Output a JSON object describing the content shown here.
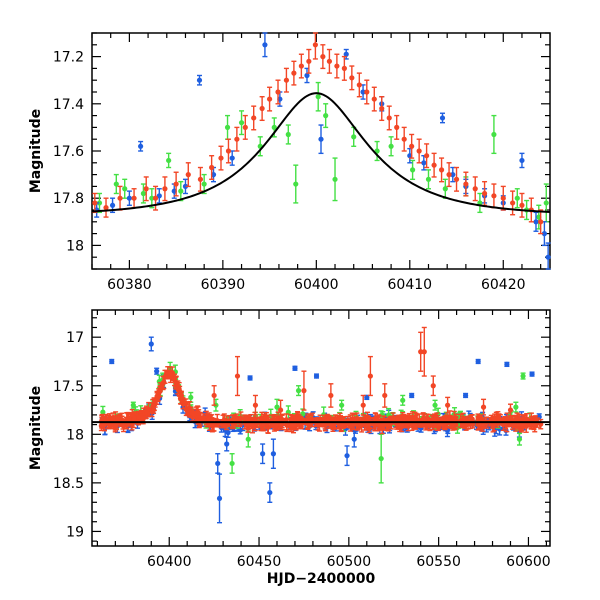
{
  "colors": {
    "blue": "#1f5fe0",
    "green": "#44e044",
    "red": "#f24626",
    "model": "#000000"
  },
  "chart_data": [
    {
      "type": "scatter",
      "panel": "top",
      "title": "",
      "xlabel": "",
      "ylabel": "Magnitude",
      "xlim": [
        60376,
        60425
      ],
      "ylim": [
        18.1,
        17.1
      ],
      "y_inverted": true,
      "xticks": [
        "60380",
        "60390",
        "60400",
        "60410",
        "60420"
      ],
      "yticks": [
        "17.2",
        "17.4",
        "17.6",
        "17.8",
        "18"
      ],
      "model_curve": {
        "peak_x": 60400,
        "peak_mag": 17.355,
        "baseline_mag": 17.875,
        "u0": 0.6,
        "tE": 10
      },
      "series": [
        {
          "color": "blue",
          "points": [
            [
              60376.5,
              17.85,
              0.03
            ],
            [
              60378.2,
              17.83,
              0.03
            ],
            [
              60380.0,
              17.8,
              0.03
            ],
            [
              60381.2,
              17.58,
              0.02
            ],
            [
              60383.2,
              17.79,
              0.03
            ],
            [
              60384.8,
              17.77,
              0.03
            ],
            [
              60386.0,
              17.75,
              0.03
            ],
            [
              60387.5,
              17.3,
              0.02
            ],
            [
              60389.0,
              17.7,
              0.03
            ],
            [
              60391.0,
              17.63,
              0.03
            ],
            [
              60394.5,
              17.15,
              0.05
            ],
            [
              60396.1,
              17.38,
              0.03
            ],
            [
              60399.0,
              17.28,
              0.03
            ],
            [
              60400.5,
              17.55,
              0.06
            ],
            [
              60403.2,
              17.19,
              0.02
            ],
            [
              60405.0,
              17.35,
              0.03
            ],
            [
              60407.0,
              17.4,
              0.03
            ],
            [
              60410.0,
              17.62,
              0.03
            ],
            [
              60411.5,
              17.65,
              0.03
            ],
            [
              60413.5,
              17.46,
              0.02
            ],
            [
              60414.6,
              17.7,
              0.03
            ],
            [
              60416.0,
              17.75,
              0.03
            ],
            [
              60418.0,
              17.79,
              0.03
            ],
            [
              60420.0,
              17.82,
              0.03
            ],
            [
              60422.0,
              17.64,
              0.03
            ],
            [
              60423.5,
              17.9,
              0.04
            ],
            [
              60424.4,
              17.95,
              0.05
            ],
            [
              60424.8,
              18.05,
              0.06
            ]
          ]
        },
        {
          "color": "green",
          "points": [
            [
              60376.8,
              17.82,
              0.04
            ],
            [
              60378.6,
              17.74,
              0.04
            ],
            [
              60379.5,
              17.76,
              0.04
            ],
            [
              60381.5,
              17.78,
              0.04
            ],
            [
              60382.4,
              17.8,
              0.04
            ],
            [
              60384.2,
              17.64,
              0.03
            ],
            [
              60385.5,
              17.77,
              0.04
            ],
            [
              60388.0,
              17.74,
              0.04
            ],
            [
              60390.5,
              17.5,
              0.05
            ],
            [
              60392.0,
              17.48,
              0.05
            ],
            [
              60394.0,
              17.58,
              0.04
            ],
            [
              60395.5,
              17.5,
              0.04
            ],
            [
              60397.0,
              17.53,
              0.04
            ],
            [
              60397.8,
              17.74,
              0.08
            ],
            [
              60400.2,
              17.37,
              0.06
            ],
            [
              60401.0,
              17.45,
              0.05
            ],
            [
              60402.0,
              17.72,
              0.09
            ],
            [
              60404.0,
              17.54,
              0.04
            ],
            [
              60406.5,
              17.6,
              0.04
            ],
            [
              60408.0,
              17.58,
              0.04
            ],
            [
              60410.3,
              17.68,
              0.04
            ],
            [
              60412.0,
              17.72,
              0.04
            ],
            [
              60413.8,
              17.76,
              0.04
            ],
            [
              60416.0,
              17.75,
              0.04
            ],
            [
              60417.5,
              17.82,
              0.04
            ],
            [
              60419.0,
              17.53,
              0.08
            ],
            [
              60421.5,
              17.8,
              0.04
            ],
            [
              60422.5,
              17.85,
              0.04
            ],
            [
              60423.8,
              17.88,
              0.05
            ],
            [
              60424.6,
              17.82,
              0.08
            ]
          ]
        },
        {
          "color": "red",
          "points": [
            [
              60376.3,
              17.82,
              0.04
            ],
            [
              60377.5,
              17.84,
              0.04
            ],
            [
              60379.0,
              17.8,
              0.05
            ],
            [
              60380.5,
              17.8,
              0.04
            ],
            [
              60381.8,
              17.76,
              0.05
            ],
            [
              60382.8,
              17.8,
              0.05
            ],
            [
              60383.8,
              17.76,
              0.05
            ],
            [
              60385.0,
              17.74,
              0.05
            ],
            [
              60386.3,
              17.7,
              0.05
            ],
            [
              60387.6,
              17.72,
              0.05
            ],
            [
              60388.8,
              17.67,
              0.05
            ],
            [
              60389.8,
              17.63,
              0.05
            ],
            [
              60390.6,
              17.6,
              0.05
            ],
            [
              60391.5,
              17.55,
              0.05
            ],
            [
              60392.4,
              17.5,
              0.05
            ],
            [
              60393.3,
              17.46,
              0.05
            ],
            [
              60394.2,
              17.42,
              0.05
            ],
            [
              60395.0,
              17.38,
              0.05
            ],
            [
              60395.9,
              17.35,
              0.05
            ],
            [
              60396.8,
              17.3,
              0.05
            ],
            [
              60397.6,
              17.27,
              0.05
            ],
            [
              60398.4,
              17.24,
              0.05
            ],
            [
              60399.2,
              17.22,
              0.05
            ],
            [
              60399.9,
              17.15,
              0.06
            ],
            [
              60400.7,
              17.2,
              0.05
            ],
            [
              60401.4,
              17.22,
              0.05
            ],
            [
              60402.2,
              17.24,
              0.05
            ],
            [
              60403.0,
              17.25,
              0.05
            ],
            [
              60403.8,
              17.29,
              0.05
            ],
            [
              60404.6,
              17.32,
              0.05
            ],
            [
              60405.4,
              17.35,
              0.05
            ],
            [
              60406.2,
              17.38,
              0.05
            ],
            [
              60407.0,
              17.42,
              0.05
            ],
            [
              60407.8,
              17.46,
              0.05
            ],
            [
              60408.6,
              17.5,
              0.05
            ],
            [
              60409.4,
              17.55,
              0.05
            ],
            [
              60410.2,
              17.58,
              0.05
            ],
            [
              60411.0,
              17.6,
              0.05
            ],
            [
              60411.8,
              17.62,
              0.05
            ],
            [
              60412.6,
              17.66,
              0.05
            ],
            [
              60413.4,
              17.68,
              0.05
            ],
            [
              60414.2,
              17.7,
              0.05
            ],
            [
              60415.0,
              17.72,
              0.05
            ],
            [
              60416.0,
              17.74,
              0.05
            ],
            [
              60417.0,
              17.76,
              0.05
            ],
            [
              60418.0,
              17.78,
              0.05
            ],
            [
              60419.0,
              17.79,
              0.05
            ],
            [
              60420.0,
              17.8,
              0.05
            ],
            [
              60421.0,
              17.82,
              0.05
            ],
            [
              60422.0,
              17.83,
              0.05
            ],
            [
              60423.0,
              17.85,
              0.05
            ],
            [
              60424.0,
              17.9,
              0.05
            ]
          ]
        }
      ]
    },
    {
      "type": "scatter",
      "panel": "bottom",
      "title": "",
      "xlabel": "HJD−2400000",
      "ylabel": "Magnitude",
      "xlim": [
        60357,
        60612
      ],
      "ylim": [
        19.15,
        16.72
      ],
      "y_inverted": true,
      "xticks": [
        "60400",
        "60450",
        "60500",
        "60550",
        "60600"
      ],
      "yticks": [
        "17",
        "17.5",
        "18",
        "18.5",
        "19"
      ],
      "baseline_mag": 17.875,
      "outliers": {
        "blue": [
          [
            60368,
            17.25,
            0.02
          ],
          [
            60390,
            17.07,
            0.07
          ],
          [
            60393,
            17.35,
            0.03
          ],
          [
            60420,
            17.78,
            0.05
          ],
          [
            60427,
            18.3,
            0.1
          ],
          [
            60428,
            18.66,
            0.25
          ],
          [
            60432,
            18.1,
            0.07
          ],
          [
            60445,
            17.42,
            0.02
          ],
          [
            60452,
            18.2,
            0.1
          ],
          [
            60456,
            18.6,
            0.1
          ],
          [
            60458,
            18.2,
            0.15
          ],
          [
            60470,
            17.32,
            0.02
          ],
          [
            60482,
            17.4,
            0.02
          ],
          [
            60499,
            18.22,
            0.1
          ],
          [
            60503,
            18.05,
            0.08
          ],
          [
            60510,
            17.62,
            0.02
          ],
          [
            60535,
            17.6,
            0.02
          ],
          [
            60565,
            17.6,
            0.02
          ],
          [
            60572,
            17.25,
            0.02
          ],
          [
            60588,
            17.28,
            0.02
          ],
          [
            60602,
            17.38,
            0.02
          ],
          [
            60606,
            17.82,
            0.03
          ]
        ],
        "green": [
          [
            60380,
            17.7,
            0.03
          ],
          [
            60395,
            17.55,
            0.06
          ],
          [
            60412,
            17.62,
            0.05
          ],
          [
            60426,
            17.7,
            0.06
          ],
          [
            60435,
            18.3,
            0.1
          ],
          [
            60444,
            18.05,
            0.08
          ],
          [
            60460,
            17.72,
            0.08
          ],
          [
            60472,
            17.55,
            0.05
          ],
          [
            60486,
            17.8,
            0.08
          ],
          [
            60496,
            17.7,
            0.05
          ],
          [
            60518,
            18.25,
            0.25
          ],
          [
            60530,
            17.65,
            0.05
          ],
          [
            60548,
            17.7,
            0.05
          ],
          [
            60568,
            17.85,
            0.05
          ],
          [
            60593,
            17.72,
            0.05
          ],
          [
            60595,
            18.05,
            0.06
          ],
          [
            60597,
            17.4,
            0.03
          ]
        ],
        "red": [
          [
            60425,
            17.6,
            0.1
          ],
          [
            60438,
            17.4,
            0.2
          ],
          [
            60448,
            17.7,
            0.1
          ],
          [
            60462,
            17.75,
            0.1
          ],
          [
            60475,
            17.55,
            0.2
          ],
          [
            60490,
            17.6,
            0.12
          ],
          [
            60508,
            17.7,
            0.1
          ],
          [
            60512,
            17.4,
            0.2
          ],
          [
            60520,
            17.6,
            0.12
          ],
          [
            60540,
            17.15,
            0.2
          ],
          [
            60542,
            17.15,
            0.25
          ],
          [
            60547,
            17.5,
            0.1
          ],
          [
            60555,
            17.7,
            0.08
          ],
          [
            60575,
            17.72,
            0.08
          ],
          [
            60590,
            17.75,
            0.06
          ]
        ]
      }
    }
  ]
}
